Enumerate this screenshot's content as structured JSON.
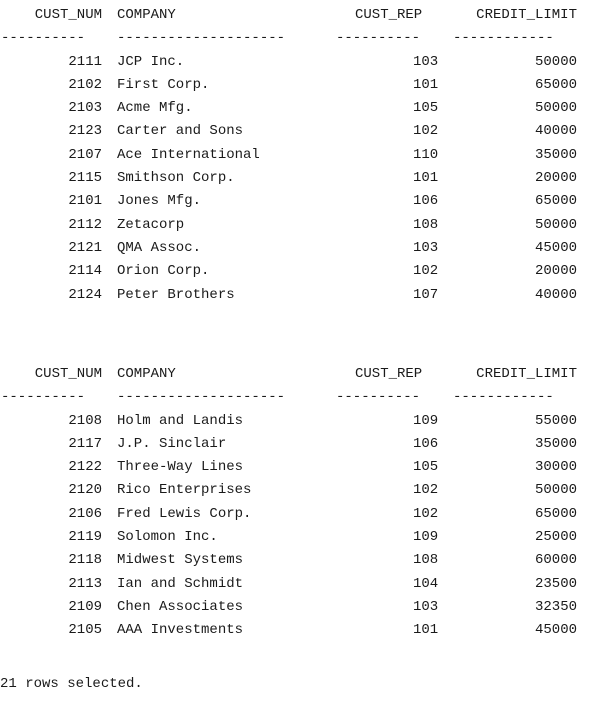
{
  "headers": {
    "cust_num": "CUST_NUM",
    "company": "COMPANY",
    "cust_rep": "CUST_REP",
    "credit_limit": "CREDIT_LIMIT"
  },
  "separators": {
    "cust_num": "----------",
    "company": "--------------------",
    "cust_rep": "----------",
    "credit_limit": "------------"
  },
  "blocks": [
    {
      "rows": [
        {
          "cust_num": "2111",
          "company": "JCP Inc.",
          "cust_rep": "103",
          "credit_limit": "50000"
        },
        {
          "cust_num": "2102",
          "company": "First Corp.",
          "cust_rep": "101",
          "credit_limit": "65000"
        },
        {
          "cust_num": "2103",
          "company": "Acme Mfg.",
          "cust_rep": "105",
          "credit_limit": "50000"
        },
        {
          "cust_num": "2123",
          "company": "Carter and Sons",
          "cust_rep": "102",
          "credit_limit": "40000"
        },
        {
          "cust_num": "2107",
          "company": "Ace International",
          "cust_rep": "110",
          "credit_limit": "35000"
        },
        {
          "cust_num": "2115",
          "company": "Smithson Corp.",
          "cust_rep": "101",
          "credit_limit": "20000"
        },
        {
          "cust_num": "2101",
          "company": "Jones Mfg.",
          "cust_rep": "106",
          "credit_limit": "65000"
        },
        {
          "cust_num": "2112",
          "company": "Zetacorp",
          "cust_rep": "108",
          "credit_limit": "50000"
        },
        {
          "cust_num": "2121",
          "company": "QMA Assoc.",
          "cust_rep": "103",
          "credit_limit": "45000"
        },
        {
          "cust_num": "2114",
          "company": "Orion Corp.",
          "cust_rep": "102",
          "credit_limit": "20000"
        },
        {
          "cust_num": "2124",
          "company": "Peter Brothers",
          "cust_rep": "107",
          "credit_limit": "40000"
        }
      ]
    },
    {
      "rows": [
        {
          "cust_num": "2108",
          "company": "Holm and Landis",
          "cust_rep": "109",
          "credit_limit": "55000"
        },
        {
          "cust_num": "2117",
          "company": "J.P. Sinclair",
          "cust_rep": "106",
          "credit_limit": "35000"
        },
        {
          "cust_num": "2122",
          "company": "Three-Way Lines",
          "cust_rep": "105",
          "credit_limit": "30000"
        },
        {
          "cust_num": "2120",
          "company": "Rico Enterprises",
          "cust_rep": "102",
          "credit_limit": "50000"
        },
        {
          "cust_num": "2106",
          "company": "Fred Lewis Corp.",
          "cust_rep": "102",
          "credit_limit": "65000"
        },
        {
          "cust_num": "2119",
          "company": "Solomon Inc.",
          "cust_rep": "109",
          "credit_limit": "25000"
        },
        {
          "cust_num": "2118",
          "company": "Midwest Systems",
          "cust_rep": "108",
          "credit_limit": "60000"
        },
        {
          "cust_num": "2113",
          "company": "Ian and Schmidt",
          "cust_rep": "104",
          "credit_limit": "23500"
        },
        {
          "cust_num": "2109",
          "company": "Chen Associates",
          "cust_rep": "103",
          "credit_limit": "32350"
        },
        {
          "cust_num": "2105",
          "company": "AAA Investments",
          "cust_rep": "101",
          "credit_limit": "45000"
        }
      ]
    }
  ],
  "status": "21 rows selected."
}
